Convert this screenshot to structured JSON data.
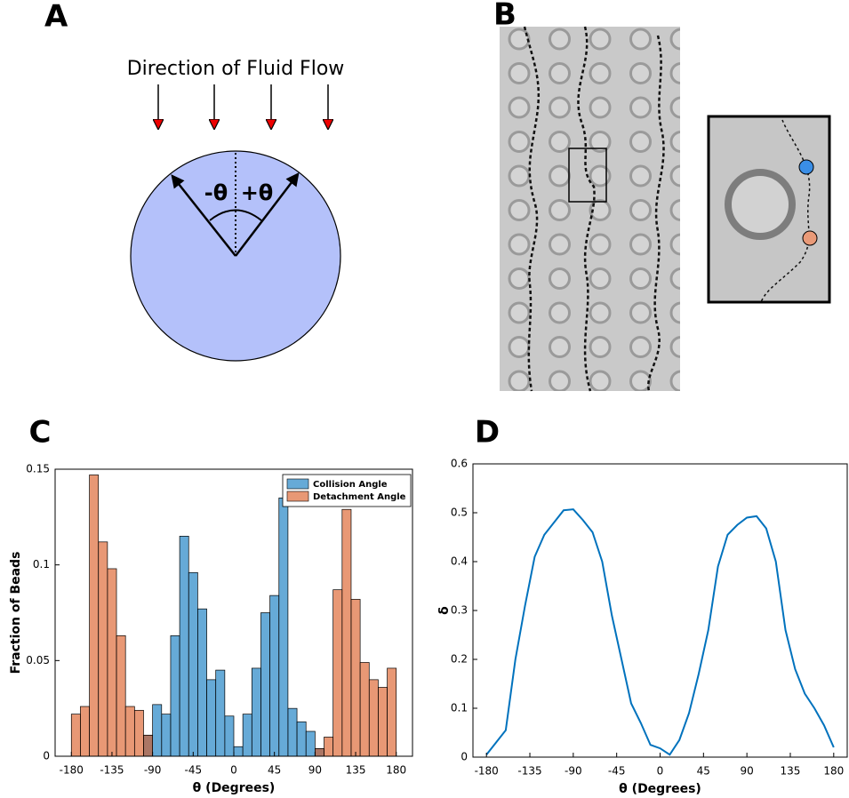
{
  "panels": {
    "A": {
      "label": "A",
      "title": "Direction of Fluid Flow",
      "minus": "-θ",
      "plus": "+θ"
    },
    "B": {
      "label": "B"
    }
  },
  "chart_data": [
    {
      "type": "histogram",
      "label": "C",
      "xlabel": "θ (Degrees)",
      "ylabel": "Fraction of Beads",
      "bins": [
        -180,
        -170,
        -160,
        -150,
        -140,
        -130,
        -120,
        -110,
        -100,
        -90,
        -80,
        -70,
        -60,
        -50,
        -40,
        -30,
        -20,
        -10,
        0,
        10,
        20,
        30,
        40,
        50,
        60,
        70,
        80,
        90,
        100,
        110,
        120,
        130,
        140,
        150,
        160,
        170,
        180
      ],
      "series": [
        {
          "name": "Collision Angle",
          "color": "#0072bd",
          "values": [
            0,
            0,
            0,
            0,
            0,
            0,
            0,
            0,
            0.011,
            0.027,
            0.022,
            0.063,
            0.115,
            0.096,
            0.077,
            0.04,
            0.045,
            0.021,
            0.005,
            0.022,
            0.046,
            0.075,
            0.084,
            0.135,
            0.025,
            0.018,
            0.013,
            0.004,
            0,
            0,
            0,
            0,
            0,
            0,
            0,
            0
          ]
        },
        {
          "name": "Detachment Angle",
          "color": "#d95319",
          "values": [
            0.022,
            0.026,
            0.147,
            0.112,
            0.098,
            0.063,
            0.026,
            0.024,
            0.011,
            0,
            0,
            0,
            0,
            0,
            0,
            0,
            0,
            0,
            0,
            0,
            0,
            0,
            0,
            0,
            0,
            0,
            0,
            0.004,
            0.01,
            0.087,
            0.129,
            0.082,
            0.049,
            0.04,
            0.036,
            0.046
          ]
        }
      ],
      "opacity": 0.6,
      "xlim": [
        -198,
        198
      ],
      "xticks": [
        -180,
        -135,
        -90,
        -45,
        0,
        45,
        90,
        135,
        180
      ],
      "ylim": [
        0,
        0.15
      ],
      "yticks": [
        0,
        0.05,
        0.1,
        0.15
      ],
      "legend": "upper right"
    },
    {
      "type": "line",
      "label": "D",
      "xlabel": "θ (Degrees)",
      "ylabel": "δ",
      "color": "#0072bd",
      "x": [
        -180,
        -170,
        -160,
        -150,
        -140,
        -130,
        -120,
        -110,
        -100,
        -90,
        -80,
        -70,
        -60,
        -50,
        -40,
        -30,
        -20,
        -10,
        0,
        10,
        20,
        30,
        40,
        50,
        60,
        70,
        80,
        90,
        100,
        110,
        120,
        130,
        140,
        150,
        160,
        170,
        180
      ],
      "values": [
        0.005,
        0.03,
        0.055,
        0.2,
        0.31,
        0.41,
        0.455,
        0.48,
        0.505,
        0.507,
        0.485,
        0.46,
        0.4,
        0.29,
        0.2,
        0.11,
        0.07,
        0.025,
        0.018,
        0.005,
        0.035,
        0.09,
        0.17,
        0.26,
        0.39,
        0.455,
        0.475,
        0.49,
        0.493,
        0.468,
        0.4,
        0.26,
        0.18,
        0.13,
        0.1,
        0.065,
        0.02
      ],
      "xlim": [
        -194,
        194
      ],
      "xticks": [
        -180,
        -135,
        -90,
        -45,
        0,
        45,
        90,
        135,
        180
      ],
      "ylim": [
        0,
        0.6
      ],
      "yticks": [
        0,
        0.1,
        0.2,
        0.3,
        0.4,
        0.5,
        0.6
      ]
    }
  ]
}
